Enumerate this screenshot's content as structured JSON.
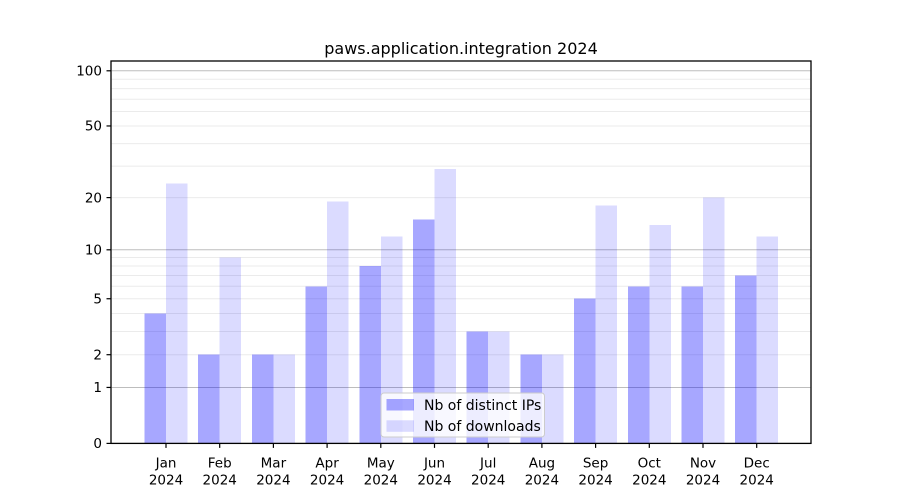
{
  "chart_data": {
    "type": "bar",
    "title": "paws.application.integration 2024",
    "categories": [
      "Jan",
      "Feb",
      "Mar",
      "Apr",
      "May",
      "Jun",
      "Jul",
      "Aug",
      "Sep",
      "Oct",
      "Nov",
      "Dec"
    ],
    "category_year": "2024",
    "series": [
      {
        "name": "Nb of distinct IPs",
        "color": "#0000ff",
        "fill_opacity": 0.345,
        "values": [
          4,
          2,
          2,
          6,
          8,
          15,
          3,
          2,
          5,
          6,
          6,
          7
        ]
      },
      {
        "name": "Nb of downloads",
        "color": "#0000ff",
        "fill_opacity": 0.143,
        "values": [
          24,
          9,
          2,
          19,
          12,
          29,
          3,
          2,
          18,
          14,
          20,
          12
        ]
      }
    ],
    "xlabel": "",
    "ylabel": "",
    "y_scale": "log10(1+x)",
    "y_tick_values": [
      0,
      1,
      2,
      5,
      10,
      20,
      50,
      100
    ],
    "y_major_gridlines": [
      1,
      10,
      100
    ],
    "y_minor_gridlines": [
      2,
      3,
      4,
      5,
      6,
      7,
      8,
      9,
      20,
      30,
      40,
      50,
      60,
      70,
      80,
      90
    ],
    "ylim": [
      0,
      113
    ],
    "grid": true,
    "legend_position": "lower center",
    "colors": {
      "grid_major": "#bdbdbd",
      "grid_minor": "#ebebeb",
      "spine": "#000000",
      "legend_bg": "#ffffff",
      "legend_border": "#cccccc",
      "text": "#000000"
    }
  }
}
